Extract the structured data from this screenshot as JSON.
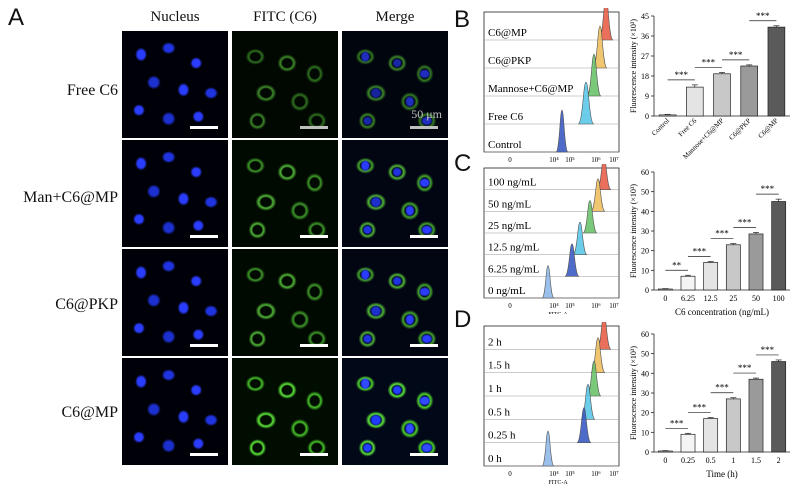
{
  "panels": {
    "a": "A",
    "b": "B",
    "c": "C",
    "d": "D"
  },
  "column_headers": [
    "Nucleus",
    "FITC (C6)",
    "Merge"
  ],
  "row_labels": [
    "Free C6",
    "Man+C6@MP",
    "C6@PKP",
    "C6@MP"
  ],
  "scale_bar_label": "50 μm",
  "colors": {
    "nucleus": "#2a3dff",
    "fitc": "#52b838",
    "hist_fill": [
      "#8fb8e8",
      "#3b5bc4",
      "#5cc8e8",
      "#6cc36c",
      "#f0c060",
      "#e8604a"
    ]
  },
  "chart_data": [
    {
      "type": "area",
      "panel": "B-histogram",
      "xlabel": "FITC-A",
      "x_ticks": [
        "0",
        "10⁴",
        "10⁵",
        "10⁶",
        "10⁷"
      ],
      "series": [
        {
          "name": "C6@MP",
          "peak": "10⁶·²"
        },
        {
          "name": "C6@PKP",
          "peak": "10⁶·¹"
        },
        {
          "name": "Mannose+C6@MP",
          "peak": "10⁶·⁰⁵"
        },
        {
          "name": "Free C6",
          "peak": "10⁵·⁸"
        },
        {
          "name": "Control",
          "peak": "10⁴·⁴"
        }
      ]
    },
    {
      "type": "bar",
      "panel": "B-bar",
      "ylabel": "Fluorescence intensity (×10³)",
      "categories": [
        "Control",
        "Free C6",
        "Mannose+C6@MP",
        "C6@PKP",
        "C6@MP"
      ],
      "values": [
        0.5,
        13,
        19,
        22.5,
        40
      ],
      "errors": [
        0.2,
        1.0,
        0.6,
        0.5,
        0.6
      ],
      "ylim": [
        0,
        45
      ],
      "y_ticks": [
        0,
        9,
        18,
        27,
        36,
        45
      ],
      "significance": [
        "***",
        "***",
        "***",
        "***"
      ]
    },
    {
      "type": "area",
      "panel": "C-histogram",
      "xlabel": "FITC-A",
      "x_ticks": [
        "0",
        "10⁴",
        "10⁵",
        "10⁶",
        "10⁷"
      ],
      "series": [
        {
          "name": "100 ng/mL"
        },
        {
          "name": "50 ng/mL"
        },
        {
          "name": "25 ng/mL"
        },
        {
          "name": "12.5 ng/mL"
        },
        {
          "name": "6.25 ng/mL"
        },
        {
          "name": "0 ng/mL"
        }
      ]
    },
    {
      "type": "bar",
      "panel": "C-bar",
      "ylabel": "Fluorescence intensity (×10³)",
      "xlabel": "C6 concentration (ng/mL)",
      "categories": [
        "0",
        "6.25",
        "12.5",
        "25",
        "50",
        "100"
      ],
      "values": [
        0.5,
        7,
        14,
        23,
        28.5,
        45
      ],
      "errors": [
        0.2,
        0.5,
        0.5,
        0.6,
        0.8,
        1.2
      ],
      "ylim": [
        0,
        60
      ],
      "y_ticks": [
        0,
        10,
        20,
        30,
        40,
        50,
        60
      ],
      "significance": [
        "**",
        "***",
        "***",
        "***",
        "***"
      ]
    },
    {
      "type": "area",
      "panel": "D-histogram",
      "xlabel": "FITC-A",
      "x_ticks": [
        "0",
        "10⁴",
        "10⁵",
        "10⁶",
        "10⁷"
      ],
      "series": [
        {
          "name": "2 h"
        },
        {
          "name": "1.5 h"
        },
        {
          "name": "1 h"
        },
        {
          "name": "0.5 h"
        },
        {
          "name": "0.25 h"
        },
        {
          "name": "0 h"
        }
      ]
    },
    {
      "type": "bar",
      "panel": "D-bar",
      "ylabel": "Fluorescence intensity (×10³)",
      "xlabel": "Time (h)",
      "categories": [
        "0",
        "0.25",
        "0.5",
        "1",
        "1.5",
        "2"
      ],
      "values": [
        0.5,
        9,
        17,
        27,
        37,
        46
      ],
      "errors": [
        0.2,
        0.5,
        0.5,
        0.6,
        0.6,
        0.8
      ],
      "ylim": [
        0,
        60
      ],
      "y_ticks": [
        0,
        10,
        20,
        30,
        40,
        50,
        60
      ],
      "significance": [
        "***",
        "***",
        "***",
        "***",
        "***"
      ]
    }
  ]
}
